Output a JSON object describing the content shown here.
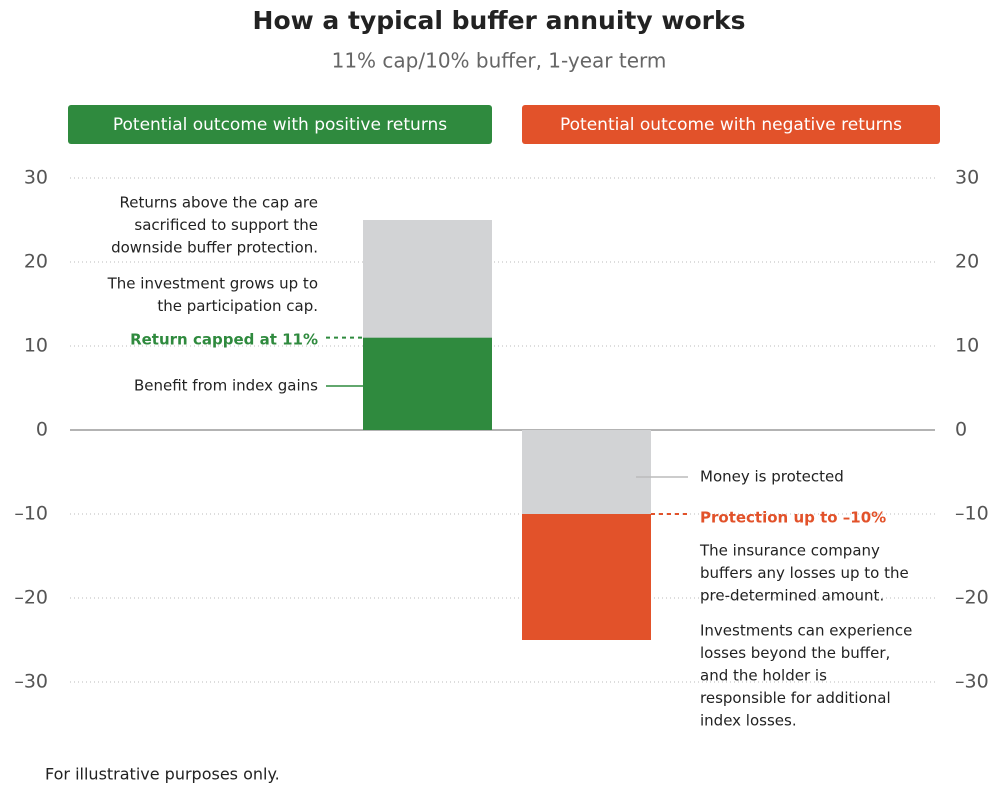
{
  "chart_data": {
    "type": "stacked-bar",
    "title": "How a typical buffer annuity works",
    "subtitle": "11% cap/10% buffer, 1-year term",
    "categories": [
      "Potential outcome with positive returns",
      "Potential outcome with negative returns"
    ],
    "category_colors": [
      "#2f8a3e",
      "#e2522a"
    ],
    "series": [
      {
        "colors": [
          "#2f8a3e",
          "#d2d3d5"
        ],
        "values": [
          11,
          -10
        ]
      },
      {
        "colors": [
          "#d2d3d5",
          "#e2522a"
        ],
        "values": [
          14,
          -15
        ]
      }
    ],
    "ylim": [
      -30,
      30
    ],
    "yticks": [
      30,
      20,
      10,
      0,
      {
        "value": -10,
        "label": "–10"
      },
      {
        "value": -20,
        "label": "–20"
      },
      {
        "value": -30,
        "label": "–30"
      }
    ],
    "grid": true,
    "annotations": [
      {
        "lines": [
          "Returns above the cap are",
          "sacrificed to support the",
          "downside buffer protection."
        ]
      },
      {
        "lines": [
          "The investment grows up to",
          "the participation cap."
        ]
      },
      {
        "lines": [
          "Return capped at 11%"
        ]
      },
      {
        "lines": [
          "Benefit from index gains"
        ]
      },
      {
        "lines": [
          "Money is protected"
        ]
      },
      {
        "lines": [
          "Protection up to –10%"
        ]
      },
      {
        "lines": [
          "The insurance company",
          "buffers any losses up to the",
          "pre-determined amount."
        ]
      },
      {
        "lines": [
          "Investments can experience",
          "losses beyond the buffer,",
          "and the holder is",
          "responsible for additional",
          "index losses."
        ]
      }
    ],
    "footnote": "For illustrative purposes only."
  }
}
